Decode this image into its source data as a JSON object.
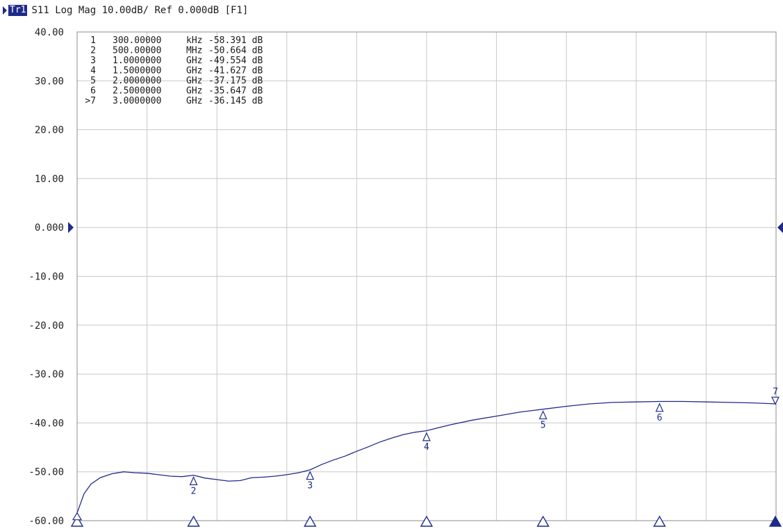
{
  "header": {
    "trace_badge": "Tr1",
    "trace_info": "S11 Log Mag 10.00dB/ Ref 0.000dB [F1]"
  },
  "colors": {
    "trace": "#1f2a8a",
    "grid": "#c8c8c8",
    "frame": "#8c8c8c",
    "marker_fill": "#ffffff"
  },
  "chart_data": {
    "type": "line",
    "title": "",
    "xlabel": "",
    "ylabel": "",
    "scale_per_div_db": 10,
    "reference_db": 0,
    "ylim": [
      -60,
      40
    ],
    "xlim_ghz": [
      0.0003,
      3.0
    ],
    "grid": true,
    "y_tick_labels": [
      "40.00",
      "30.00",
      "20.00",
      "10.00",
      "0.000",
      "-10.00",
      "-20.00",
      "-30.00",
      "-40.00",
      "-50.00",
      "-60.00"
    ],
    "series": [
      {
        "x_ghz": [
          0.0003,
          0.03,
          0.06,
          0.1,
          0.15,
          0.2,
          0.25,
          0.3,
          0.35,
          0.4,
          0.45,
          0.5,
          0.55,
          0.6,
          0.65,
          0.7,
          0.75,
          0.8,
          0.85,
          0.9,
          0.95,
          1.0,
          1.05,
          1.1,
          1.15,
          1.2,
          1.25,
          1.3,
          1.35,
          1.4,
          1.45,
          1.5,
          1.6,
          1.7,
          1.8,
          1.9,
          2.0,
          2.1,
          2.2,
          2.3,
          2.4,
          2.5,
          2.6,
          2.7,
          2.8,
          2.9,
          3.0
        ],
        "y_db": [
          -58.4,
          -54.5,
          -52.5,
          -51.2,
          -50.4,
          -50.0,
          -50.2,
          -50.3,
          -50.6,
          -50.9,
          -51.0,
          -50.7,
          -51.3,
          -51.6,
          -51.9,
          -51.8,
          -51.2,
          -51.1,
          -50.9,
          -50.6,
          -50.2,
          -49.6,
          -48.5,
          -47.6,
          -46.8,
          -45.8,
          -44.9,
          -43.9,
          -43.1,
          -42.4,
          -41.9,
          -41.6,
          -40.4,
          -39.4,
          -38.6,
          -37.8,
          -37.2,
          -36.6,
          -36.1,
          -35.8,
          -35.7,
          -35.6,
          -35.6,
          -35.7,
          -35.8,
          -35.9,
          -36.1
        ]
      }
    ],
    "markers": [
      {
        "index": "1",
        "freq": "300.00000",
        "unit": "kHz",
        "value": "-58.391 dB",
        "x_ghz": 0.0003,
        "y_db": -58.391
      },
      {
        "index": "2",
        "freq": "500.00000",
        "unit": "MHz",
        "value": "-50.664 dB",
        "x_ghz": 0.5,
        "y_db": -50.664
      },
      {
        "index": "3",
        "freq": "1.0000000",
        "unit": "GHz",
        "value": "-49.554 dB",
        "x_ghz": 1.0,
        "y_db": -49.554
      },
      {
        "index": "4",
        "freq": "1.5000000",
        "unit": "GHz",
        "value": "-41.627 dB",
        "x_ghz": 1.5,
        "y_db": -41.627
      },
      {
        "index": "5",
        "freq": "2.0000000",
        "unit": "GHz",
        "value": "-37.175 dB",
        "x_ghz": 2.0,
        "y_db": -37.175
      },
      {
        "index": "6",
        "freq": "2.5000000",
        "unit": "GHz",
        "value": "-35.647 dB",
        "x_ghz": 2.5,
        "y_db": -35.647
      },
      {
        "index": ">7",
        "freq": "3.0000000",
        "unit": "GHz",
        "value": "-36.145 dB",
        "x_ghz": 3.0,
        "y_db": -36.145
      }
    ]
  }
}
